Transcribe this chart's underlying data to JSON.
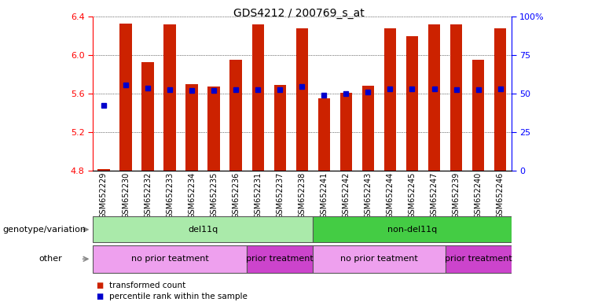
{
  "title": "GDS4212 / 200769_s_at",
  "samples": [
    "GSM652229",
    "GSM652230",
    "GSM652232",
    "GSM652233",
    "GSM652234",
    "GSM652235",
    "GSM652236",
    "GSM652231",
    "GSM652237",
    "GSM652238",
    "GSM652241",
    "GSM652242",
    "GSM652243",
    "GSM652244",
    "GSM652245",
    "GSM652247",
    "GSM652239",
    "GSM652240",
    "GSM652246"
  ],
  "bar_heights": [
    4.82,
    6.33,
    5.93,
    6.32,
    5.7,
    5.67,
    5.95,
    6.32,
    5.69,
    6.28,
    5.55,
    5.61,
    5.68,
    6.28,
    6.2,
    6.32,
    6.32,
    5.95,
    6.28
  ],
  "blue_dots": [
    5.48,
    5.69,
    5.66,
    5.64,
    5.63,
    5.63,
    5.64,
    5.64,
    5.64,
    5.67,
    5.58,
    5.6,
    5.62,
    5.65,
    5.65,
    5.65,
    5.64,
    5.64,
    5.65
  ],
  "ylim_left": [
    4.8,
    6.4
  ],
  "ylim_right": [
    0,
    100
  ],
  "yticks_left": [
    4.8,
    5.2,
    5.6,
    6.0,
    6.4
  ],
  "yticks_right": [
    0,
    25,
    50,
    75,
    100
  ],
  "bar_color": "#CC2200",
  "dot_color": "#0000CC",
  "groups": [
    {
      "label": "del11q",
      "color": "#AAEAAA",
      "start": 0,
      "end": 10
    },
    {
      "label": "non-del11q",
      "color": "#44CC44",
      "start": 10,
      "end": 19
    }
  ],
  "subgroups": [
    {
      "label": "no prior teatment",
      "color": "#EEA0EE",
      "start": 0,
      "end": 7
    },
    {
      "label": "prior treatment",
      "color": "#CC44CC",
      "start": 7,
      "end": 10
    },
    {
      "label": "no prior teatment",
      "color": "#EEA0EE",
      "start": 10,
      "end": 16
    },
    {
      "label": "prior treatment",
      "color": "#CC44CC",
      "start": 16,
      "end": 19
    }
  ],
  "legend": [
    {
      "label": "transformed count",
      "color": "#CC2200",
      "marker": "s"
    },
    {
      "label": "percentile rank within the sample",
      "color": "#0000CC",
      "marker": "s"
    }
  ],
  "bar_width": 0.55,
  "label_fontsize": 7,
  "tick_fontsize": 8,
  "title_fontsize": 10,
  "panel_label_fontsize": 8,
  "panel_text_fontsize": 8
}
